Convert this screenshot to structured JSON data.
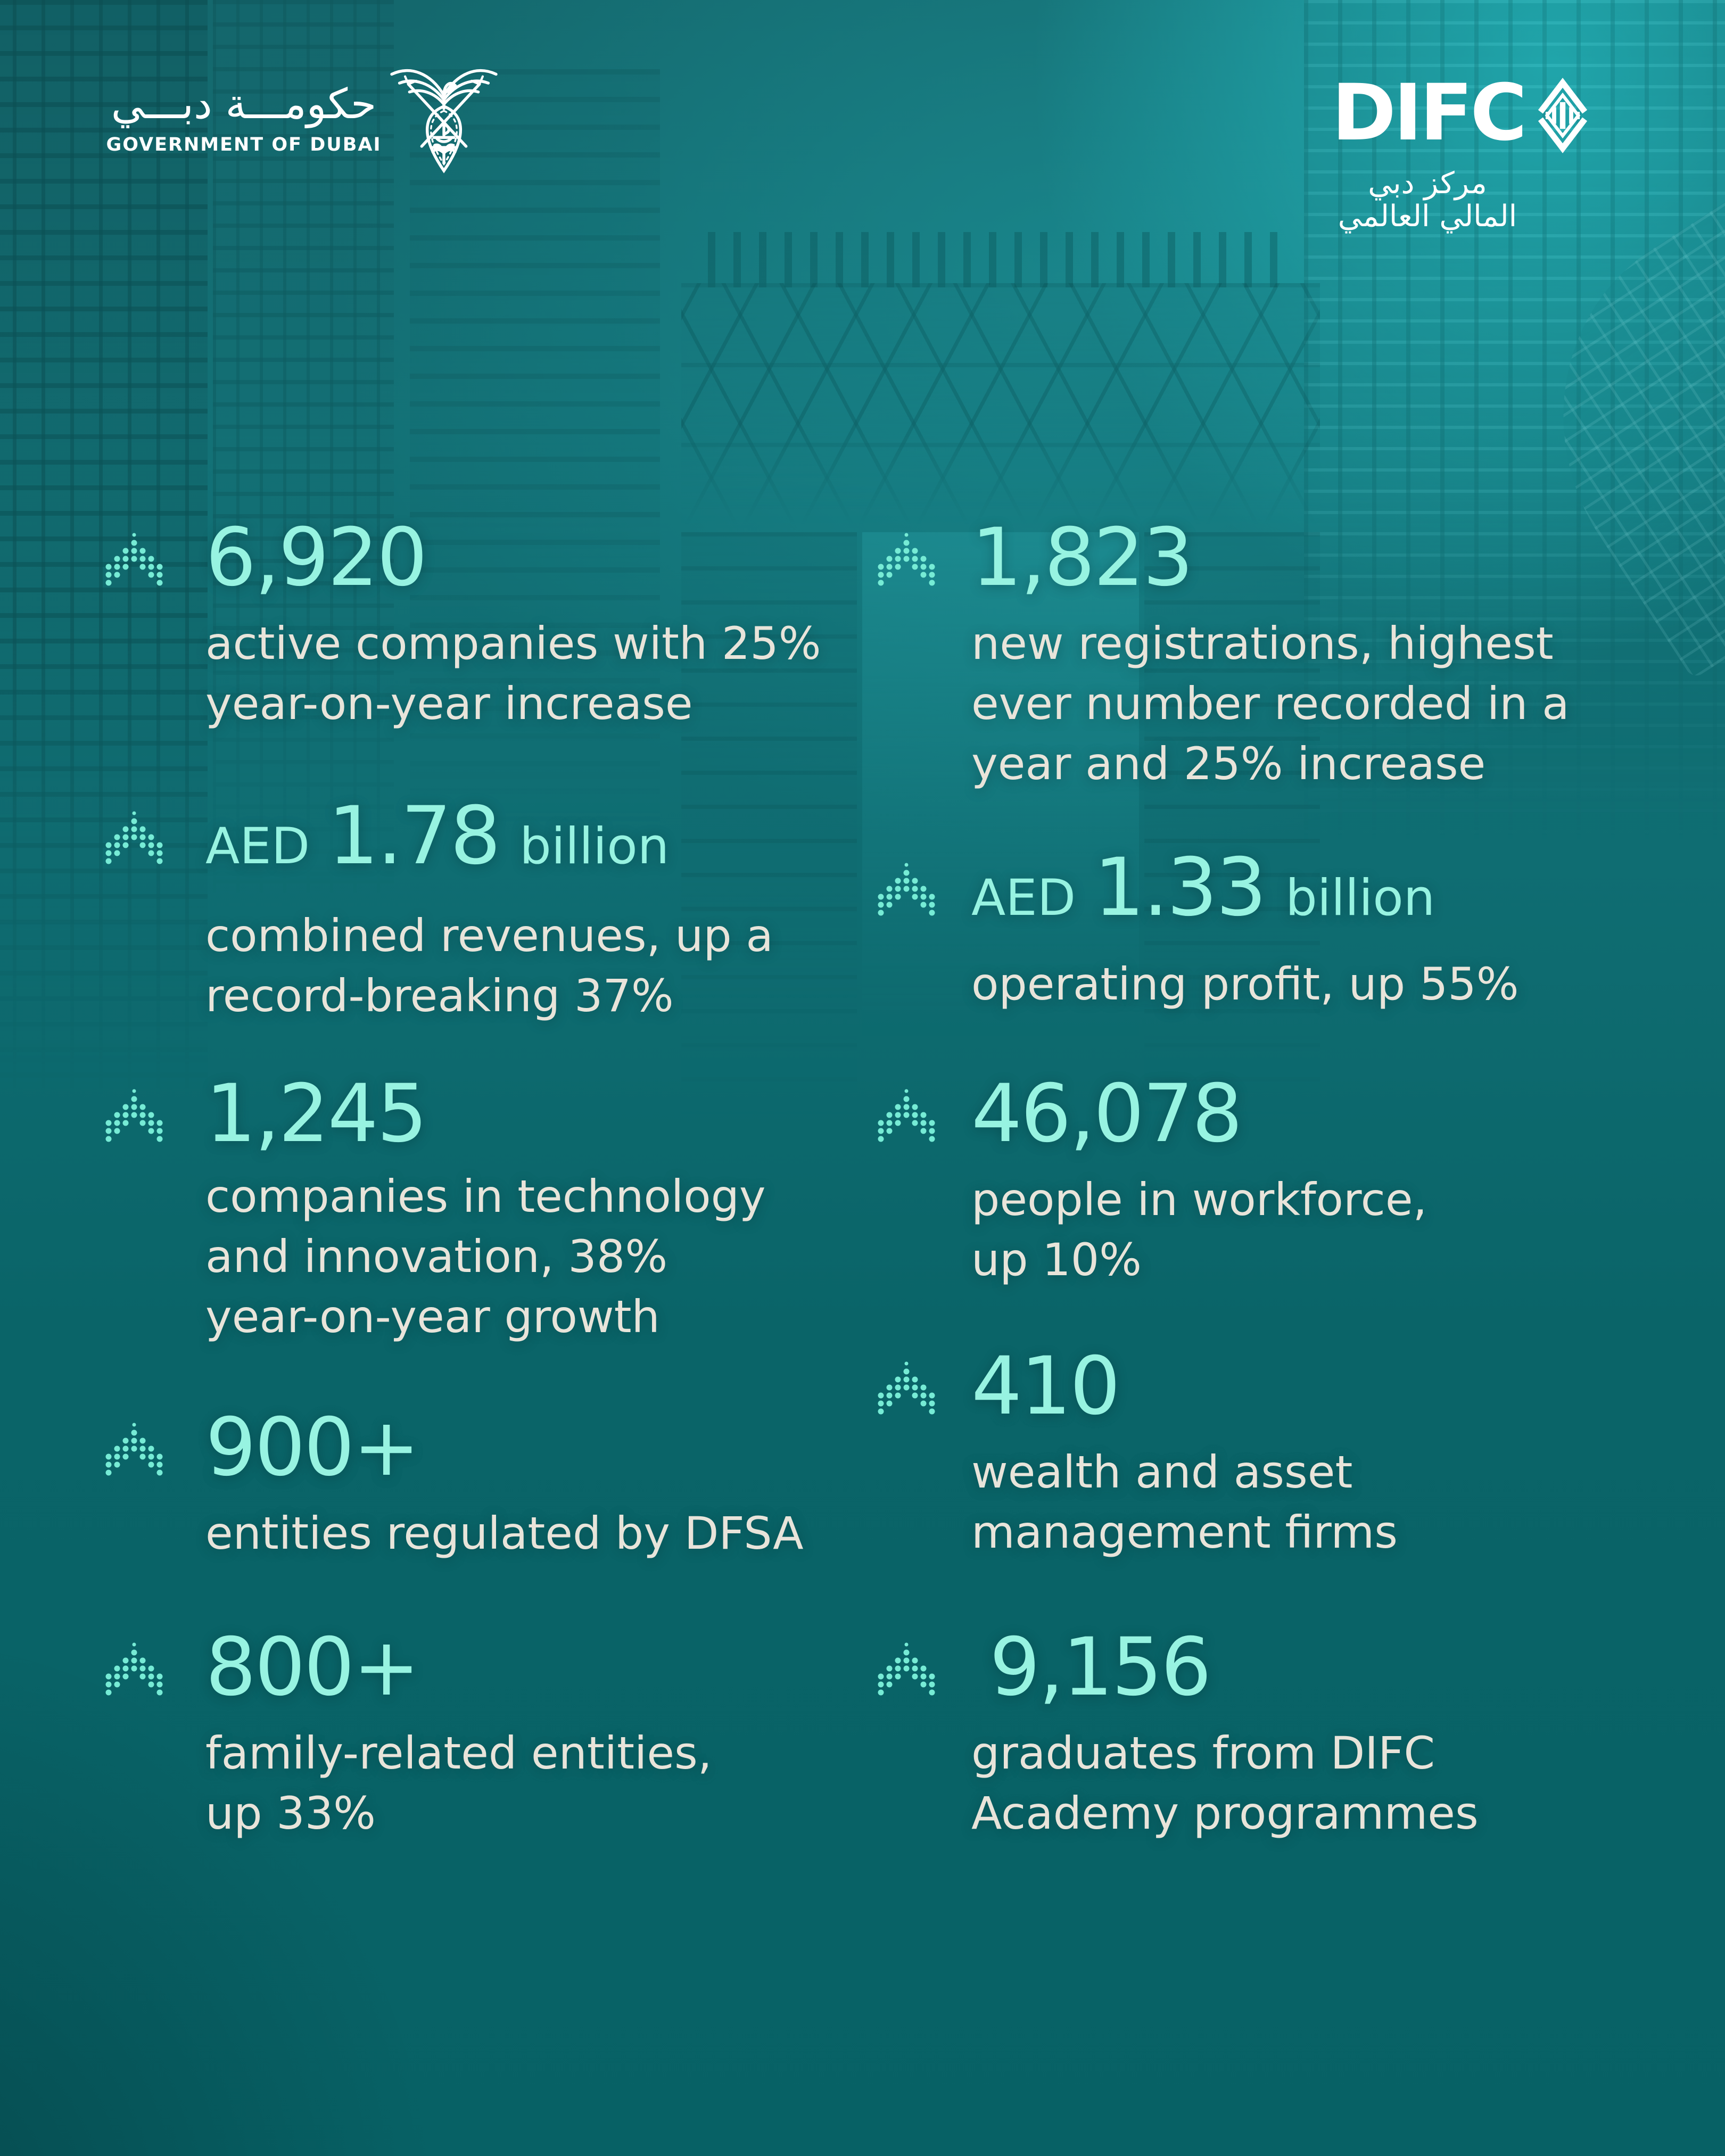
{
  "header": {
    "gov_logo": {
      "arabic": "حكومـــة دبـــي",
      "english": "GOVERNMENT OF DUBAI",
      "emblem_icon": "dubai-crest-icon"
    },
    "difc_logo": {
      "wordmark": "DIFC",
      "arabic": "مركز دبي المالي العالمي",
      "mark_icon": "difc-diamond-icon"
    }
  },
  "colors": {
    "accent_mint": "#97F3E1",
    "icon_mint": "#76EBD5",
    "text_light": "#E8E4DA",
    "teal_bright": "#26BAC0",
    "teal_dark": "#076165",
    "logo_white": "#FFFFFF"
  },
  "stats": [
    {
      "id": "active-companies",
      "value": "6,920",
      "prefix": "",
      "suffix": "",
      "desc_lines": [
        "active companies with 25%",
        "year-on-year increase"
      ],
      "icon": "dotted-up-arrow-icon"
    },
    {
      "id": "combined-revenues",
      "value": "1.78",
      "prefix": "AED",
      "suffix": "billion",
      "desc_lines": [
        "combined revenues, up a",
        "record-breaking 37%"
      ],
      "icon": "dotted-up-arrow-icon"
    },
    {
      "id": "tech-innovation-companies",
      "value": "1,245",
      "prefix": "",
      "suffix": "",
      "desc_lines": [
        "companies in technology",
        "and innovation, 38%",
        "year-on-year growth"
      ],
      "icon": "dotted-up-arrow-icon"
    },
    {
      "id": "dfsa-regulated-entities",
      "value": "900+",
      "prefix": "",
      "suffix": "",
      "desc_lines": [
        "entities regulated by DFSA"
      ],
      "icon": "dotted-up-arrow-icon"
    },
    {
      "id": "family-related-entities",
      "value": "800+",
      "prefix": "",
      "suffix": "",
      "desc_lines": [
        "family-related entities,",
        "up 33%"
      ],
      "icon": "dotted-up-arrow-icon"
    },
    {
      "id": "new-registrations",
      "value": "1,823",
      "prefix": "",
      "suffix": "",
      "desc_lines": [
        "new registrations, highest",
        "ever number recorded in a",
        "year and 25% increase"
      ],
      "icon": "dotted-up-arrow-icon"
    },
    {
      "id": "operating-profit",
      "value": "1.33",
      "prefix": "AED",
      "suffix": "billion",
      "desc_lines": [
        "operating profit, up 55%"
      ],
      "icon": "dotted-up-arrow-icon"
    },
    {
      "id": "workforce",
      "value": "46,078",
      "prefix": "",
      "suffix": "",
      "desc_lines": [
        "people in workforce,",
        "up 10%"
      ],
      "icon": "dotted-up-arrow-icon"
    },
    {
      "id": "wealth-asset-firms",
      "value": "410",
      "prefix": "",
      "suffix": "",
      "desc_lines": [
        "wealth and asset",
        "management firms"
      ],
      "icon": "dotted-up-arrow-icon"
    },
    {
      "id": "academy-graduates",
      "value": "9,156",
      "prefix": "",
      "suffix": "",
      "desc_lines": [
        "graduates from DIFC",
        "Academy programmes"
      ],
      "icon": "dotted-up-arrow-icon"
    }
  ]
}
